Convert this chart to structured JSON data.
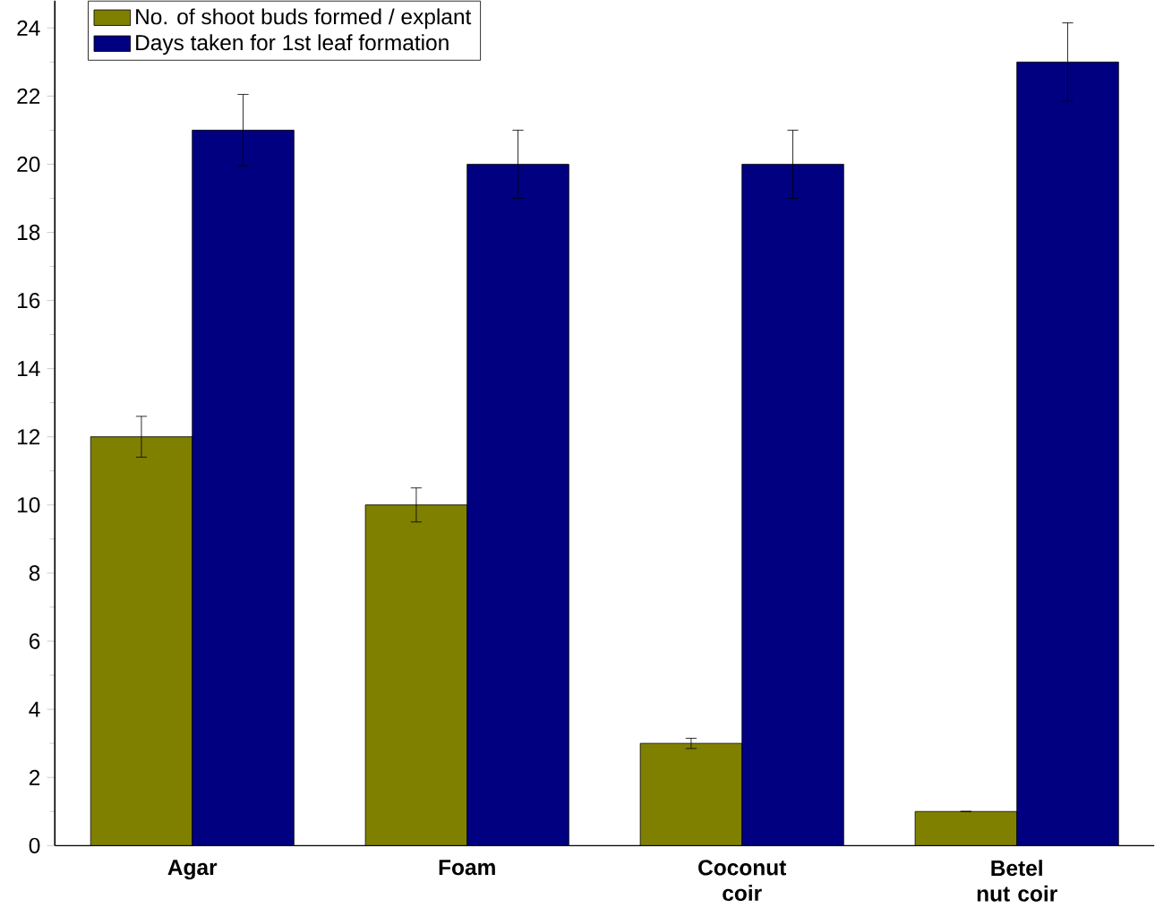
{
  "chart_data": {
    "type": "bar",
    "categories": [
      "Agar",
      "Foam",
      "Coconut coir",
      "Betel nut coir"
    ],
    "series": [
      {
        "name": "No. of shoot buds formed / explant",
        "color": "#808000",
        "values": [
          12,
          10,
          3,
          1
        ],
        "errors": [
          0.6,
          0.5,
          0.15,
          null
        ]
      },
      {
        "name": "Days taken for 1st leaf formation",
        "color": "#000080",
        "values": [
          21,
          20,
          20,
          23
        ],
        "errors": [
          1.05,
          1,
          1,
          1.15
        ]
      }
    ],
    "ylim": [
      0,
      24.8
    ],
    "yticks": [
      0,
      2,
      4,
      6,
      8,
      10,
      12,
      14,
      16,
      18,
      20,
      22,
      24
    ],
    "legend": "top left",
    "grid": false
  }
}
